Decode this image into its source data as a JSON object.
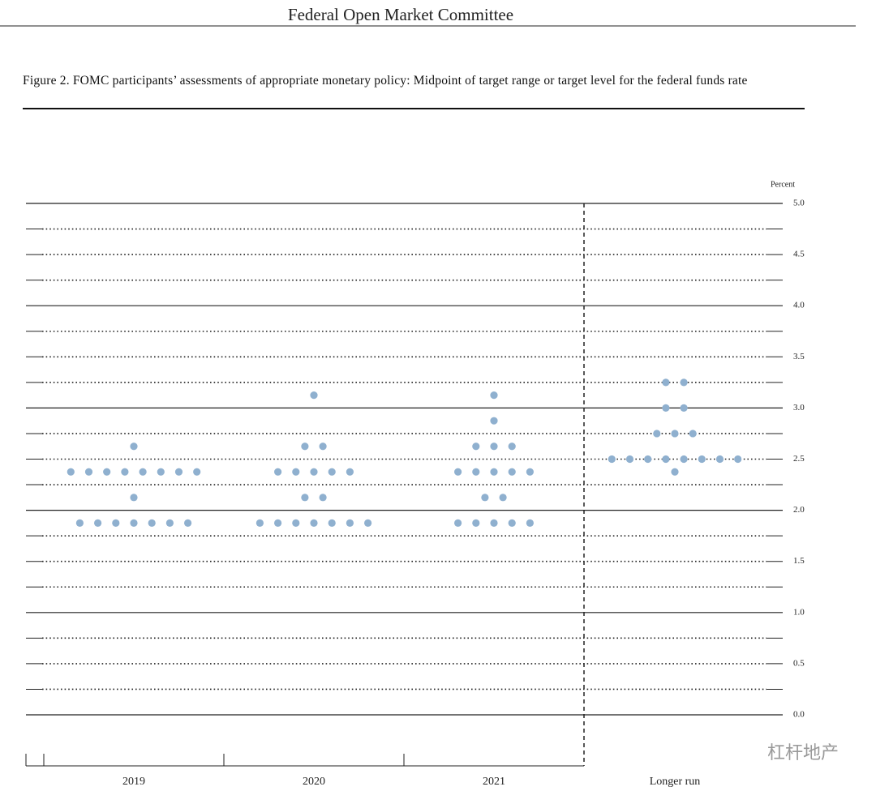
{
  "header": "Federal Open Market Committee",
  "watermark": "杠杆地产",
  "chart_data": {
    "type": "dot",
    "title": "Figure 2. FOMC participants’ assessments of appropriate monetary policy: Midpoint of target range or target level for the federal funds rate",
    "y_label": "Percent",
    "color": "#8fb0cf",
    "categories": [
      "2019",
      "2020",
      "2021",
      "Longer run"
    ],
    "values": [
      [
        2.625,
        2.375,
        2.375,
        2.375,
        2.375,
        2.375,
        2.375,
        2.375,
        2.375,
        2.125,
        1.875,
        1.875,
        1.875,
        1.875,
        1.875,
        1.875,
        1.875
      ],
      [
        3.125,
        2.625,
        2.625,
        2.375,
        2.375,
        2.375,
        2.375,
        2.375,
        2.125,
        2.125,
        1.875,
        1.875,
        1.875,
        1.875,
        1.875,
        1.875,
        1.875
      ],
      [
        3.125,
        2.875,
        2.625,
        2.625,
        2.625,
        2.375,
        2.375,
        2.375,
        2.375,
        2.375,
        2.125,
        2.125,
        1.875,
        1.875,
        1.875,
        1.875,
        1.875
      ],
      [
        3.25,
        3.25,
        3.0,
        3.0,
        2.75,
        2.75,
        2.75,
        2.5,
        2.5,
        2.5,
        2.5,
        2.5,
        2.5,
        2.5,
        2.5,
        2.375
      ]
    ],
    "ylim": [
      0,
      5
    ],
    "yticks": [
      {
        "value": 5,
        "label": "5.0"
      },
      4.5,
      {
        "value": 4,
        "label": "4.0"
      },
      3.5,
      {
        "value": 3,
        "label": "3.0"
      },
      2.5,
      {
        "value": 2,
        "label": "2.0"
      },
      1.5,
      {
        "value": 1,
        "label": "1.0"
      },
      0.5,
      {
        "value": 0,
        "label": "0.0"
      }
    ],
    "ygrid": [
      0,
      0.25,
      0.5,
      0.75,
      1,
      1.25,
      1.5,
      1.75,
      2,
      2.25,
      2.5,
      2.75,
      3,
      3.25,
      3.5,
      3.75,
      4,
      4.25,
      4.5,
      4.75,
      5
    ]
  }
}
